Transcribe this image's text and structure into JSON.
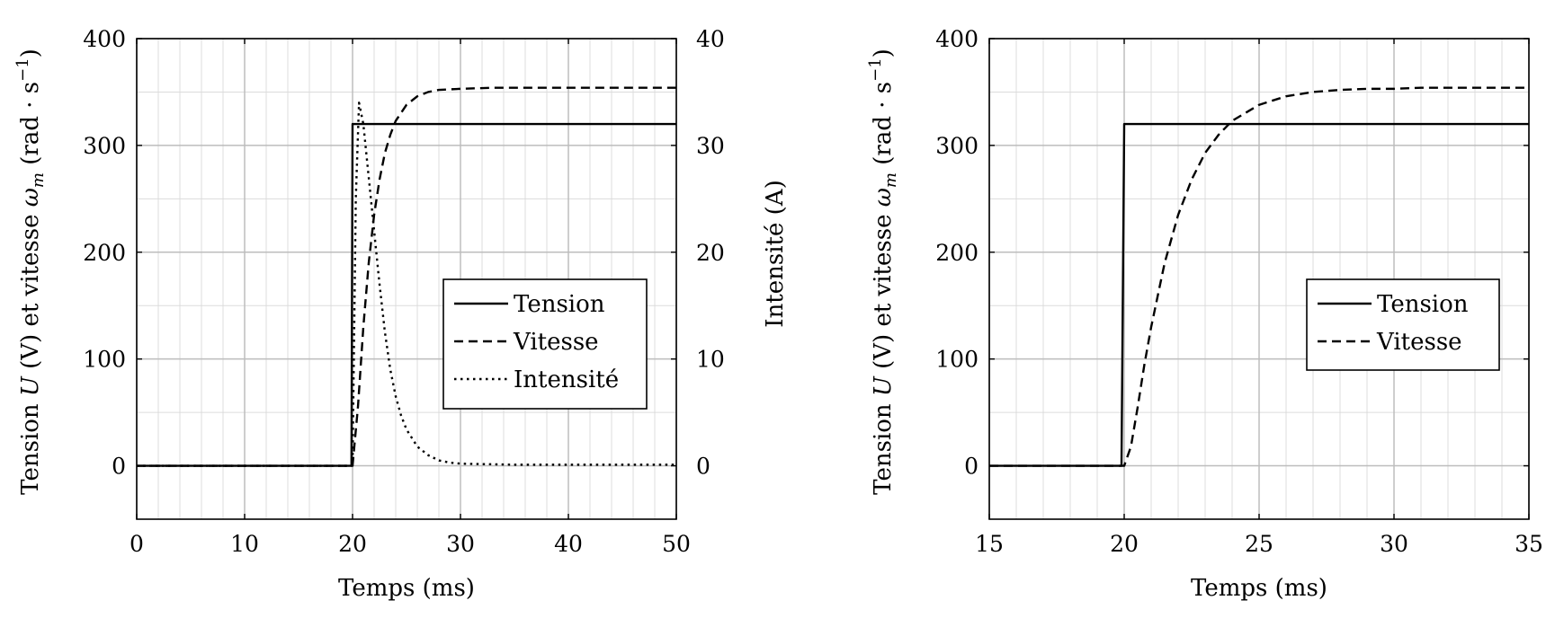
{
  "chart_data": [
    {
      "type": "line",
      "xlabel": "Temps (ms)",
      "ylabel": "Tension U (V) et vitesse ω_m (rad · s⁻¹)",
      "ylabel_parts": {
        "a": "Tension ",
        "U": "U",
        "b": " (V) et vitesse ",
        "w": "ω",
        "sub": "m",
        "c": " (rad · s",
        "sup": "−1",
        "d": ")"
      },
      "y2label": "Intensité (A)",
      "xlim": [
        0,
        50
      ],
      "ylim": [
        -50,
        400
      ],
      "y2lim": [
        -5,
        40
      ],
      "xticks": [
        "0",
        "10",
        "20",
        "30",
        "40",
        "50"
      ],
      "yticks": [
        "0",
        "100",
        "200",
        "300",
        "400"
      ],
      "y2ticks": [
        "0",
        "10",
        "20",
        "30",
        "40"
      ],
      "grid": true,
      "legend_position": "center-right",
      "series": [
        {
          "name": "Tension",
          "axis": "left",
          "style": "solid",
          "x": [
            0,
            19.9,
            20,
            50
          ],
          "y": [
            0,
            0,
            320,
            320
          ]
        },
        {
          "name": "Vitesse",
          "axis": "left",
          "style": "dashed",
          "x": [
            0,
            20,
            20.5,
            21,
            21.5,
            22,
            22.5,
            23,
            23.5,
            24,
            25,
            26,
            27,
            28,
            30,
            33,
            40,
            50
          ],
          "y": [
            0,
            0,
            55,
            130,
            190,
            235,
            268,
            293,
            310,
            323,
            338,
            346,
            350,
            352,
            353,
            354,
            354,
            354
          ]
        },
        {
          "name": "Intensité",
          "axis": "right",
          "style": "dotted",
          "x": [
            0,
            20,
            20.3,
            20.6,
            21,
            21.5,
            22,
            22.5,
            23,
            23.5,
            24,
            24.5,
            25,
            26,
            27,
            28,
            29,
            30,
            35,
            50
          ],
          "y": [
            0,
            0,
            25,
            34,
            32,
            27,
            22,
            17,
            12.5,
            9,
            6.5,
            4.7,
            3.4,
            1.8,
            1,
            0.5,
            0.3,
            0.2,
            0.1,
            0.1
          ]
        }
      ]
    },
    {
      "type": "line",
      "xlabel": "Temps (ms)",
      "ylabel": "Tension U (V) et vitesse ω_m (rad · s⁻¹)",
      "ylabel_parts": {
        "a": "Tension ",
        "U": "U",
        "b": " (V) et vitesse ",
        "w": "ω",
        "sub": "m",
        "c": " (rad · s",
        "sup": "−1",
        "d": ")"
      },
      "xlim": [
        15,
        35
      ],
      "ylim": [
        -50,
        400
      ],
      "xticks": [
        "15",
        "20",
        "25",
        "30",
        "35"
      ],
      "yticks": [
        "0",
        "100",
        "200",
        "300",
        "400"
      ],
      "grid": true,
      "legend_position": "center-right",
      "series": [
        {
          "name": "Tension",
          "style": "solid",
          "x": [
            15,
            19.9,
            20,
            35
          ],
          "y": [
            0,
            0,
            320,
            320
          ]
        },
        {
          "name": "Vitesse",
          "style": "dashed",
          "x": [
            15,
            20,
            20.25,
            20.5,
            20.75,
            21,
            21.5,
            22,
            22.5,
            23,
            23.5,
            24,
            25,
            26,
            27,
            28,
            29,
            30,
            31,
            33,
            35
          ],
          "y": [
            0,
            0,
            18,
            55,
            95,
            130,
            190,
            235,
            268,
            293,
            310,
            323,
            338,
            346,
            350,
            352,
            353,
            353,
            354,
            354,
            354
          ]
        }
      ]
    }
  ]
}
